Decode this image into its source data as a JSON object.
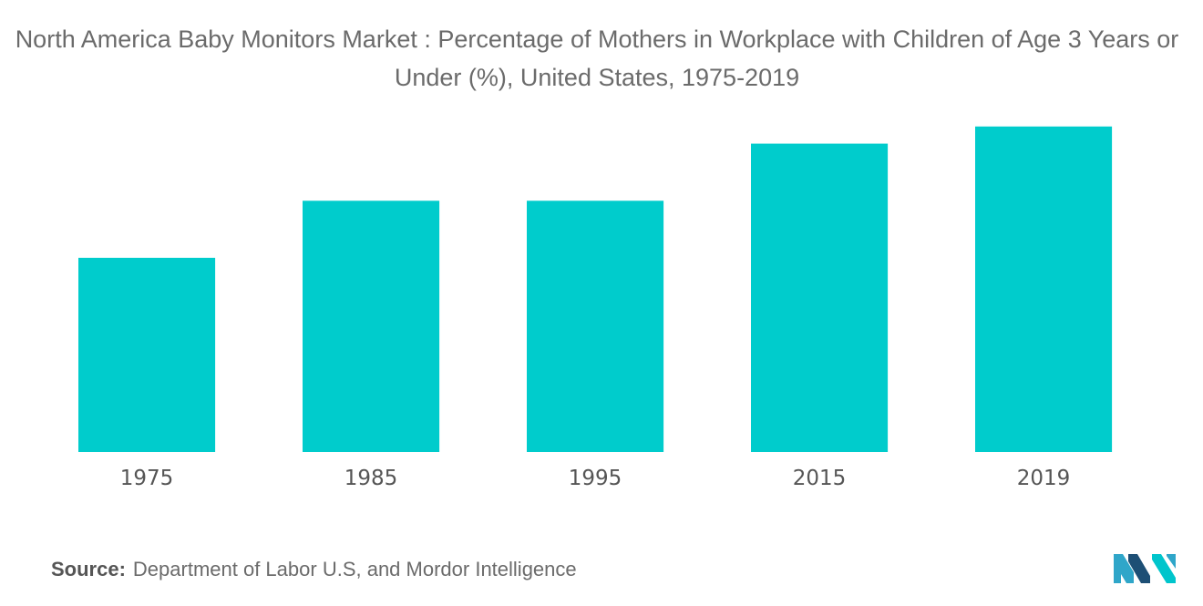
{
  "title": "North America Baby Monitors Market : Percentage of Mothers in Workplace with Children of Age 3 Years or Under (%), United States, 1975-2019",
  "source": {
    "label": "Source:",
    "text": "Department of Labor U.S, and Mordor Intelligence"
  },
  "logo": {
    "icon": "mordor-intelligence-logo-icon",
    "colors": [
      "#2fa6c9",
      "#1d4f75",
      "#00c5cc"
    ]
  },
  "chart_data": {
    "type": "bar",
    "title": "North America Baby Monitors Market : Percentage of Mothers in Workplace with Children of Age 3 Years or Under (%), United States, 1975-2019",
    "xlabel": "",
    "ylabel": "",
    "categories": [
      "1975",
      "1985",
      "1995",
      "2015",
      "2019"
    ],
    "values": [
      34,
      44,
      44,
      54,
      57
    ],
    "ylim": [
      0,
      60
    ],
    "grid": false,
    "y_axis_visible": false,
    "bar_color": "#00cccc"
  }
}
